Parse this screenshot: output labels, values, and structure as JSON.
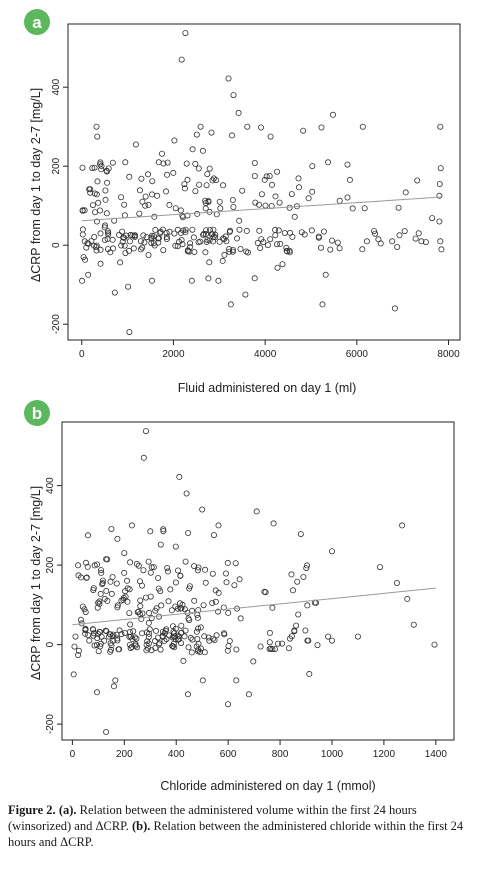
{
  "caption": {
    "figure_label": "Figure 2.",
    "part_a_label": "(a).",
    "part_a_text": " Relation between the administered volume within the first 24 hours (winsorized) and ΔCRP. ",
    "part_b_label": "(b).",
    "part_b_text": " Relation between the administered chloride within the first 24 hours and ΔCRP."
  },
  "badge_color": "#5cb85c",
  "point_color": "#333333",
  "trend_color": "#9a9a9a",
  "chart_data": [
    {
      "panel": "a",
      "type": "scatter",
      "xlabel": "Fluid administered on day 1 (ml)",
      "ylabel": "ΔCRP from day 1 to day 2-7 [mg/L]",
      "xlim": [
        -300,
        8250
      ],
      "ylim": [
        -240,
        560
      ],
      "xticks": [
        0,
        2000,
        4000,
        6000,
        8000
      ],
      "yticks": [
        -200,
        0,
        200,
        400
      ],
      "trend": [
        [
          0,
          62
        ],
        [
          7850,
          122
        ]
      ],
      "seed": 1234,
      "n_points": 300,
      "x_range": [
        0,
        7850
      ],
      "y_center": 90,
      "points": [
        [
          2260,
          537
        ],
        [
          2180,
          470
        ],
        [
          3200,
          422
        ],
        [
          3310,
          380
        ],
        [
          3420,
          335
        ],
        [
          3610,
          300
        ],
        [
          3910,
          298
        ],
        [
          4120,
          275
        ],
        [
          4830,
          290
        ],
        [
          5230,
          298
        ],
        [
          5480,
          330
        ],
        [
          6130,
          300
        ],
        [
          7820,
          300
        ],
        [
          340,
          275
        ],
        [
          950,
          210
        ],
        [
          1180,
          255
        ],
        [
          1680,
          210
        ],
        [
          2020,
          265
        ],
        [
          2510,
          280
        ],
        [
          2830,
          285
        ],
        [
          1040,
          -220
        ],
        [
          3250,
          -150
        ],
        [
          3570,
          -125
        ],
        [
          5250,
          -150
        ],
        [
          5320,
          -75
        ],
        [
          6830,
          -160
        ],
        [
          1010,
          -105
        ],
        [
          720,
          -120
        ],
        [
          7830,
          195
        ],
        [
          7810,
          155
        ],
        [
          7800,
          125
        ],
        [
          7800,
          60
        ],
        [
          7820,
          10
        ],
        [
          7350,
          30
        ],
        [
          6930,
          25
        ],
        [
          6470,
          15
        ],
        [
          6220,
          10
        ],
        [
          140,
          -75
        ],
        [
          40,
          -30
        ],
        [
          25,
          40
        ],
        [
          65,
          10
        ],
        [
          500,
          45
        ],
        [
          510,
          50
        ]
      ]
    },
    {
      "panel": "b",
      "type": "scatter",
      "xlabel": "Chloride administered on day 1 (mmol)",
      "ylabel": "ΔCRP from day 1 to day 2-7 [mg/L]",
      "xlim": [
        -40,
        1470
      ],
      "ylim": [
        -240,
        560
      ],
      "xticks": [
        0,
        200,
        400,
        600,
        800,
        1000,
        1200,
        1400
      ],
      "yticks": [
        -200,
        0,
        200,
        400
      ],
      "trend": [
        [
          0,
          50
        ],
        [
          1400,
          142
        ]
      ],
      "seed": 4321,
      "n_points": 300,
      "x_range": [
        20,
        1000
      ],
      "y_center": 80,
      "points": [
        [
          283,
          537
        ],
        [
          275,
          470
        ],
        [
          412,
          422
        ],
        [
          440,
          380
        ],
        [
          500,
          340
        ],
        [
          710,
          335
        ],
        [
          880,
          278
        ],
        [
          775,
          305
        ],
        [
          300,
          285
        ],
        [
          350,
          290
        ],
        [
          1000,
          235
        ],
        [
          1270,
          300
        ],
        [
          1185,
          195
        ],
        [
          1250,
          155
        ],
        [
          1290,
          115
        ],
        [
          1315,
          50
        ],
        [
          1395,
          0
        ],
        [
          1100,
          20
        ],
        [
          985,
          20
        ],
        [
          890,
          170
        ],
        [
          60,
          275
        ],
        [
          125,
          115
        ],
        [
          155,
          170
        ],
        [
          130,
          215
        ],
        [
          130,
          -220
        ],
        [
          95,
          -120
        ],
        [
          160,
          -105
        ],
        [
          680,
          -125
        ],
        [
          600,
          -150
        ],
        [
          445,
          -125
        ],
        [
          1000,
          10
        ],
        [
          5,
          -75
        ],
        [
          12,
          20
        ],
        [
          8,
          -5
        ],
        [
          65,
          10
        ],
        [
          50,
          40
        ]
      ]
    }
  ]
}
